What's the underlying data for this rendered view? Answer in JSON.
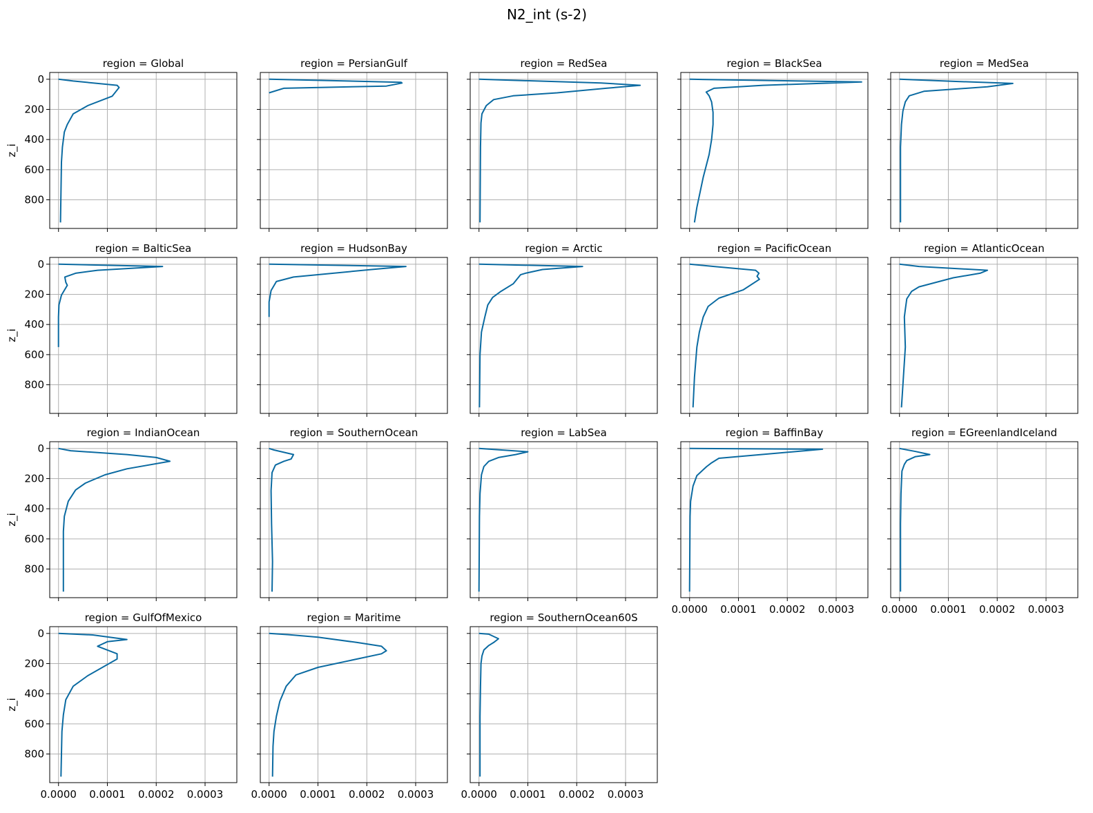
{
  "figure": {
    "title": "N2_int (s-2)"
  },
  "chart_data": {
    "type": "line",
    "title": "N2_int (s-2)",
    "ylabel": "z_i",
    "xlabel": "",
    "xlim": [
      -1.8e-05,
      0.000365
    ],
    "ylim": [
      990,
      -45
    ],
    "y_inverted": true,
    "grid": true,
    "xticks": [
      0,
      0.0001,
      0.0002,
      0.0003
    ],
    "xtick_labels": [
      "0.0000",
      "0.0001",
      "0.0002",
      "0.0003"
    ],
    "yticks": [
      0,
      200,
      400,
      600,
      800
    ],
    "ytick_labels": [
      "0",
      "200",
      "400",
      "600",
      "800"
    ],
    "line_color": "#0a6aa1",
    "panels": [
      {
        "title": "region = Global",
        "points": [
          [
            0,
            0
          ],
          [
            3e-05,
            12
          ],
          [
            0.00012,
            40
          ],
          [
            0.000124,
            55
          ],
          [
            0.00011,
            112
          ],
          [
            6e-05,
            175
          ],
          [
            3e-05,
            230
          ],
          [
            1.8e-05,
            300
          ],
          [
            1.2e-05,
            350
          ],
          [
            8e-06,
            450
          ],
          [
            6e-06,
            550
          ],
          [
            5e-06,
            750
          ],
          [
            4e-06,
            950
          ]
        ]
      },
      {
        "title": "region = PersianGulf",
        "points": [
          [
            0,
            0
          ],
          [
            0.00027,
            20
          ],
          [
            0.000272,
            25
          ],
          [
            0.00024,
            45
          ],
          [
            3e-05,
            60
          ],
          [
            0,
            90
          ]
        ]
      },
      {
        "title": "region = RedSea",
        "points": [
          [
            0,
            0
          ],
          [
            0.00025,
            25
          ],
          [
            0.00033,
            40
          ],
          [
            0.00026,
            60
          ],
          [
            0.00016,
            90
          ],
          [
            7e-05,
            110
          ],
          [
            3e-05,
            135
          ],
          [
            1.5e-05,
            175
          ],
          [
            6e-06,
            230
          ],
          [
            4e-06,
            290
          ],
          [
            3e-06,
            450
          ],
          [
            2e-06,
            950
          ]
        ]
      },
      {
        "title": "region = BlackSea",
        "points": [
          [
            0,
            0
          ],
          [
            0.000352,
            18
          ],
          [
            0.00015,
            40
          ],
          [
            5e-05,
            60
          ],
          [
            3.4e-05,
            85
          ],
          [
            4e-05,
            110
          ],
          [
            4.5e-05,
            150
          ],
          [
            4.8e-05,
            220
          ],
          [
            4.8e-05,
            300
          ],
          [
            4.5e-05,
            400
          ],
          [
            4e-05,
            500
          ],
          [
            2.8e-05,
            650
          ],
          [
            1.5e-05,
            850
          ],
          [
            1e-05,
            950
          ]
        ]
      },
      {
        "title": "region = MedSea",
        "points": [
          [
            0,
            0
          ],
          [
            0.00012,
            15
          ],
          [
            0.000232,
            28
          ],
          [
            0.00018,
            50
          ],
          [
            5e-05,
            80
          ],
          [
            2e-05,
            110
          ],
          [
            1.2e-05,
            150
          ],
          [
            7e-06,
            210
          ],
          [
            4e-06,
            300
          ],
          [
            2e-06,
            450
          ],
          [
            2e-06,
            950
          ]
        ]
      },
      {
        "title": "region = BalticSea",
        "points": [
          [
            0,
            0
          ],
          [
            0.000213,
            15
          ],
          [
            8e-05,
            40
          ],
          [
            3.5e-05,
            60
          ],
          [
            1.3e-05,
            85
          ],
          [
            1.5e-05,
            120
          ],
          [
            1.8e-05,
            140
          ],
          [
            6e-06,
            205
          ],
          [
            1e-06,
            270
          ],
          [
            0,
            350
          ],
          [
            0,
            550
          ]
        ]
      },
      {
        "title": "region = HudsonBay",
        "points": [
          [
            0,
            0
          ],
          [
            0.00028,
            15
          ],
          [
            0.00021,
            35
          ],
          [
            5e-05,
            85
          ],
          [
            1.5e-05,
            115
          ],
          [
            4e-06,
            175
          ],
          [
            0,
            250
          ],
          [
            0,
            350
          ]
        ]
      },
      {
        "title": "region = Arctic",
        "points": [
          [
            0,
            0
          ],
          [
            0.000212,
            15
          ],
          [
            0.00013,
            35
          ],
          [
            9.5e-05,
            60
          ],
          [
            8.5e-05,
            70
          ],
          [
            7e-05,
            130
          ],
          [
            4.5e-05,
            180
          ],
          [
            2.8e-05,
            220
          ],
          [
            1.8e-05,
            270
          ],
          [
            1.2e-05,
            350
          ],
          [
            5e-06,
            450
          ],
          [
            2e-06,
            600
          ],
          [
            1e-06,
            950
          ]
        ]
      },
      {
        "title": "region = PacificOcean",
        "points": [
          [
            0,
            0
          ],
          [
            5e-05,
            15
          ],
          [
            0.000135,
            40
          ],
          [
            0.000142,
            60
          ],
          [
            0.000138,
            80
          ],
          [
            0.000143,
            100
          ],
          [
            0.00011,
            170
          ],
          [
            6e-05,
            225
          ],
          [
            3.8e-05,
            280
          ],
          [
            2.8e-05,
            350
          ],
          [
            2e-05,
            450
          ],
          [
            1.5e-05,
            550
          ],
          [
            1e-05,
            750
          ],
          [
            7e-06,
            950
          ]
        ]
      },
      {
        "title": "region = AtlanticOcean",
        "points": [
          [
            0,
            0
          ],
          [
            4e-05,
            15
          ],
          [
            0.00018,
            40
          ],
          [
            0.000165,
            60
          ],
          [
            0.00011,
            90
          ],
          [
            4e-05,
            150
          ],
          [
            2.5e-05,
            180
          ],
          [
            1.5e-05,
            230
          ],
          [
            1.2e-05,
            300
          ],
          [
            1e-05,
            350
          ],
          [
            1.2e-05,
            550
          ],
          [
            8e-06,
            750
          ],
          [
            4e-06,
            950
          ]
        ]
      },
      {
        "title": "region = IndianOcean",
        "points": [
          [
            0,
            0
          ],
          [
            2.5e-05,
            15
          ],
          [
            0.00014,
            40
          ],
          [
            0.0002,
            60
          ],
          [
            0.000228,
            85
          ],
          [
            0.00014,
            135
          ],
          [
            9.5e-05,
            175
          ],
          [
            5.5e-05,
            230
          ],
          [
            3.5e-05,
            275
          ],
          [
            2e-05,
            350
          ],
          [
            1.2e-05,
            450
          ],
          [
            1e-05,
            550
          ],
          [
            1e-05,
            750
          ],
          [
            1e-05,
            950
          ]
        ]
      },
      {
        "title": "region = SouthernOcean",
        "points": [
          [
            0,
            0
          ],
          [
            1e-05,
            10
          ],
          [
            5e-05,
            40
          ],
          [
            4.5e-05,
            70
          ],
          [
            3e-05,
            85
          ],
          [
            1.3e-05,
            110
          ],
          [
            6e-06,
            160
          ],
          [
            4e-06,
            280
          ],
          [
            5e-06,
            500
          ],
          [
            7e-06,
            750
          ],
          [
            6e-06,
            950
          ]
        ]
      },
      {
        "title": "region = LabSea",
        "points": [
          [
            0,
            0
          ],
          [
            0.0001,
            22
          ],
          [
            7.5e-05,
            40
          ],
          [
            4e-05,
            60
          ],
          [
            2e-05,
            85
          ],
          [
            1e-05,
            120
          ],
          [
            5e-06,
            175
          ],
          [
            2e-06,
            300
          ],
          [
            1e-06,
            450
          ],
          [
            0,
            950
          ]
        ]
      },
      {
        "title": "region = BaffinBay",
        "points": [
          [
            0,
            0
          ],
          [
            0.000272,
            5
          ],
          [
            6e-05,
            65
          ],
          [
            4.5e-05,
            95
          ],
          [
            3.5e-05,
            120
          ],
          [
            1.5e-05,
            180
          ],
          [
            7e-06,
            250
          ],
          [
            2e-06,
            350
          ],
          [
            1e-06,
            450
          ],
          [
            0,
            950
          ]
        ]
      },
      {
        "title": "region = EGreenlandIceland",
        "points": [
          [
            0,
            0
          ],
          [
            3.3e-05,
            20
          ],
          [
            6.2e-05,
            40
          ],
          [
            3.2e-05,
            55
          ],
          [
            1.5e-05,
            80
          ],
          [
            1e-05,
            105
          ],
          [
            5e-06,
            150
          ],
          [
            3e-06,
            300
          ],
          [
            2e-06,
            500
          ],
          [
            2e-06,
            950
          ]
        ]
      },
      {
        "title": "region = GulfOfMexico",
        "points": [
          [
            0,
            0
          ],
          [
            7e-05,
            10
          ],
          [
            0.00014,
            40
          ],
          [
            0.0001,
            55
          ],
          [
            8e-05,
            85
          ],
          [
            0.00012,
            135
          ],
          [
            0.00012,
            170
          ],
          [
            6e-05,
            280
          ],
          [
            3e-05,
            350
          ],
          [
            1.5e-05,
            440
          ],
          [
            1e-05,
            540
          ],
          [
            7e-06,
            650
          ],
          [
            5e-06,
            950
          ]
        ]
      },
      {
        "title": "region = Maritime",
        "points": [
          [
            0,
            0
          ],
          [
            4e-05,
            8
          ],
          [
            0.0001,
            25
          ],
          [
            0.00018,
            60
          ],
          [
            0.00023,
            85
          ],
          [
            0.00024,
            115
          ],
          [
            0.00023,
            135
          ],
          [
            0.0001,
            225
          ],
          [
            5.5e-05,
            275
          ],
          [
            3.5e-05,
            350
          ],
          [
            2.2e-05,
            450
          ],
          [
            1.5e-05,
            550
          ],
          [
            1e-05,
            650
          ],
          [
            8e-06,
            750
          ],
          [
            7e-06,
            950
          ]
        ]
      },
      {
        "title": "region = SouthernOcean60S",
        "points": [
          [
            0,
            0
          ],
          [
            2e-05,
            5
          ],
          [
            4e-05,
            35
          ],
          [
            3e-05,
            60
          ],
          [
            2e-05,
            80
          ],
          [
            1e-05,
            110
          ],
          [
            6e-06,
            150
          ],
          [
            4e-06,
            200
          ],
          [
            3e-06,
            350
          ],
          [
            2e-06,
            550
          ],
          [
            2e-06,
            950
          ]
        ]
      }
    ]
  }
}
